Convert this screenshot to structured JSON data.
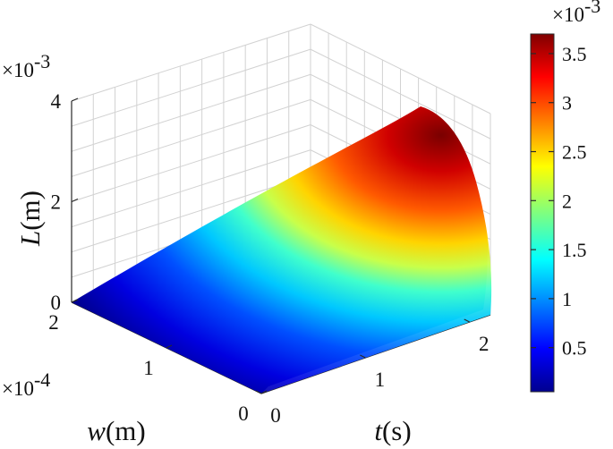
{
  "chart_data": {
    "type": "surface",
    "title": "",
    "axes": {
      "t": {
        "label_var": "t",
        "label_unit": "(s)",
        "ticks": [
          "0",
          "1",
          "2"
        ],
        "range": [
          0,
          2.2
        ]
      },
      "w": {
        "label_var": "w",
        "label_unit": "(m)",
        "ticks": [
          "0",
          "1",
          "2"
        ],
        "range": [
          0,
          2
        ],
        "multiplier": "×10",
        "multiplier_exp": "-4"
      },
      "L": {
        "label_var": "L",
        "label_unit": "(m)",
        "ticks": [
          "0",
          "2",
          "4"
        ],
        "range": [
          0,
          4
        ],
        "multiplier": "×10",
        "multiplier_exp": "-3"
      }
    },
    "surface": {
      "description_of_values": "L(t,w) rises from 0 at t=0; maximum near t≈2.1, w≈0 (about 3.7e-3 m)",
      "max_value": 3.7,
      "min_value": 0,
      "grid_t": [
        0,
        0.5,
        1.0,
        1.5,
        2.0,
        2.2
      ],
      "grid_w": [
        0,
        0.5,
        1.0,
        1.5,
        2.0
      ],
      "values": [
        [
          0.0,
          0.0,
          0.0,
          0.0,
          0.0
        ],
        [
          0.85,
          0.78,
          0.62,
          0.45,
          0.3
        ],
        [
          1.7,
          1.55,
          1.25,
          0.92,
          0.6
        ],
        [
          2.55,
          2.3,
          1.85,
          1.35,
          0.9
        ],
        [
          3.4,
          3.05,
          2.45,
          1.8,
          1.2
        ],
        [
          3.7,
          3.3,
          2.6,
          1.9,
          1.25
        ]
      ]
    },
    "colorbar": {
      "colormap": "jet",
      "ticks": [
        "0.5",
        "1",
        "1.5",
        "2",
        "2.5",
        "3",
        "3.5"
      ],
      "range": [
        0.05,
        3.7
      ],
      "multiplier": "×10",
      "multiplier_exp": "-3"
    },
    "grid": true
  }
}
